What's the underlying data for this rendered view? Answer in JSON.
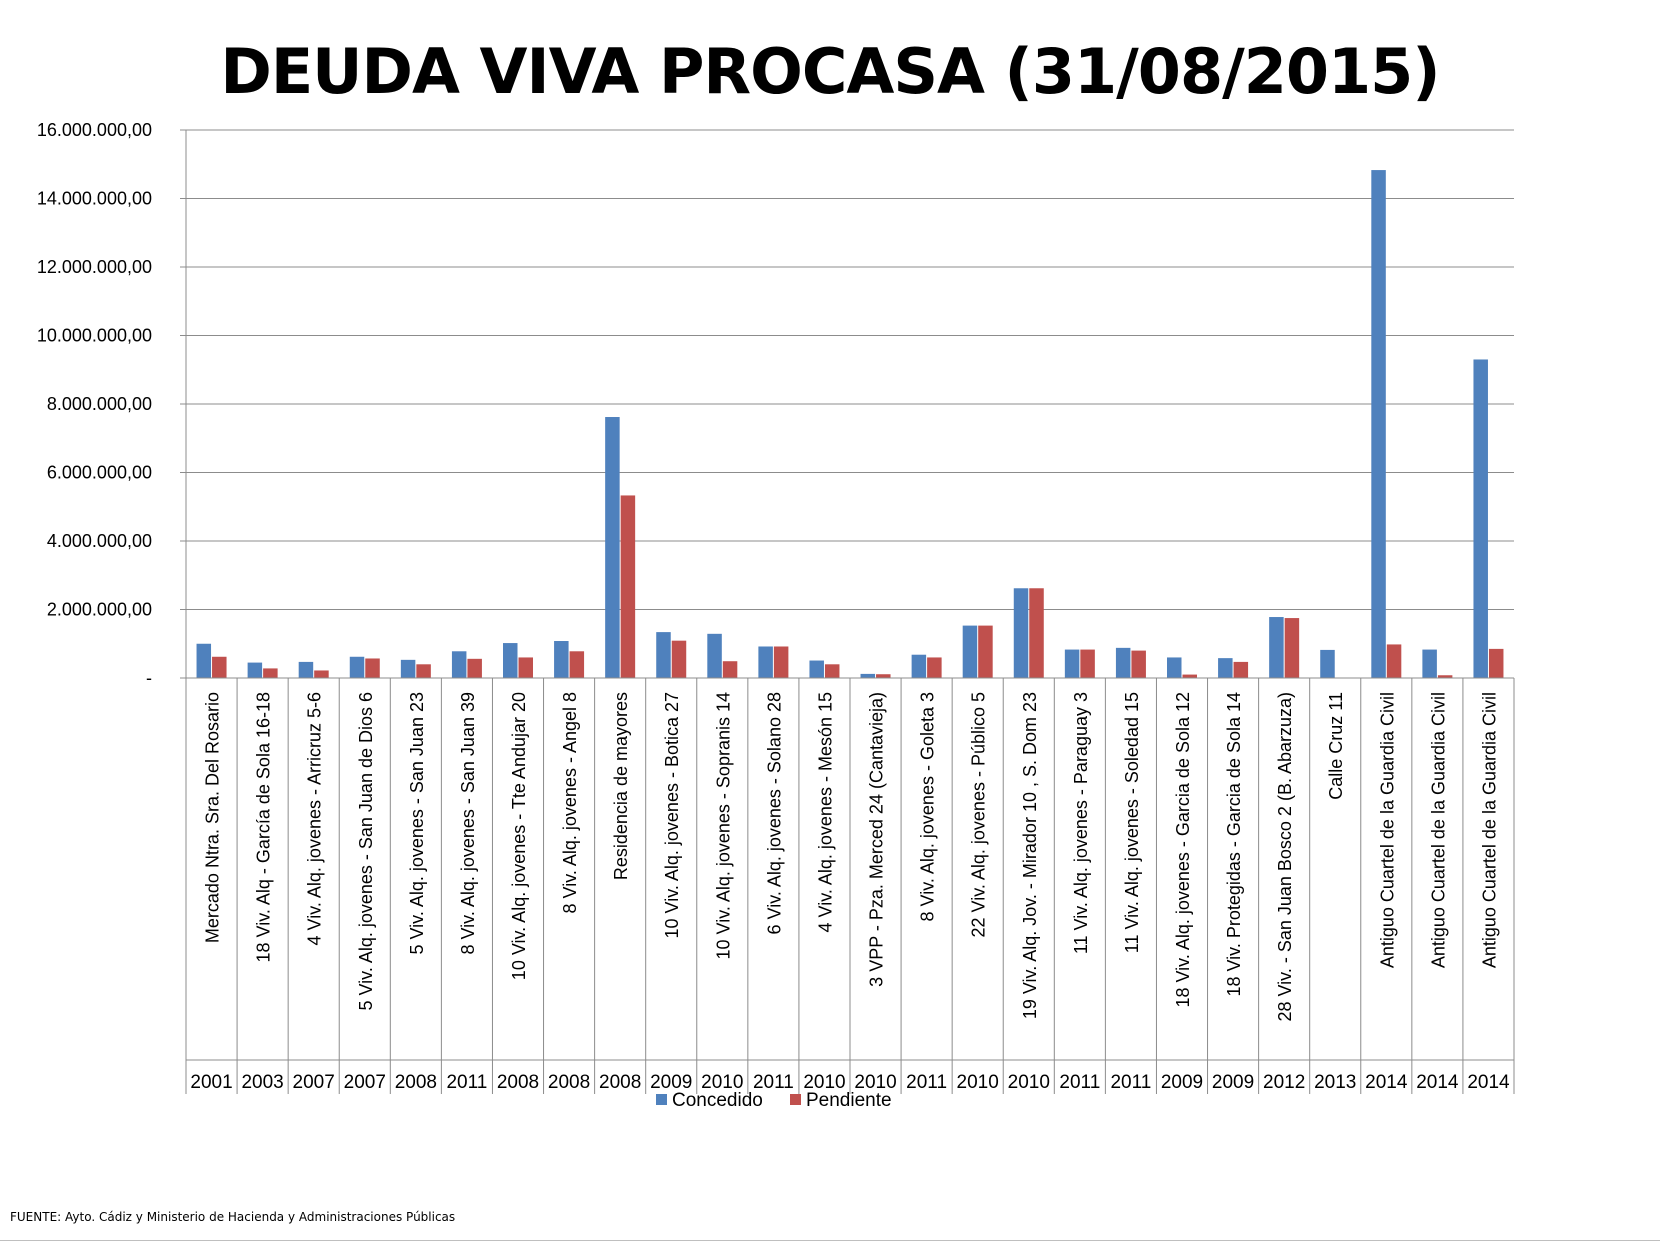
{
  "chart_data": {
    "type": "bar",
    "title": "DEUDA VIVA PROCASA (31/08/2015)",
    "xlabel": "",
    "ylabel": "",
    "ylim": [
      0,
      16000000
    ],
    "y_ticks": [
      "-",
      "2.000.000,00",
      "4.000.000,00",
      "6.000.000,00",
      "8.000.000,00",
      "10.000.000,00",
      "12.000.000,00",
      "14.000.000,00",
      "16.000.000,00"
    ],
    "y_tick_values": [
      0,
      2000000,
      4000000,
      6000000,
      8000000,
      10000000,
      12000000,
      14000000,
      16000000
    ],
    "grid": true,
    "legend": "bottom",
    "categories": [
      "Mercado Ntra. Sra. Del Rosario",
      "18 Viv. Alq - García de Sola 16-18",
      "4 Viv. Alq. jovenes - Arricruz 5-6",
      "5 Viv. Alq. jovenes - San Juan de Dios 6",
      "5 Viv. Alq. jovenes - San Juan 23",
      "8 Viv. Alq. jovenes - San Juan 39",
      "10 Viv. Alq. jovenes - Tte Andujar 20",
      "8 Viv. Alq. jovenes - Angel 8",
      "Residencia de mayores",
      "10 Viv. Alq. jovenes - Botica 27",
      "10 Viv. Alq. jovenes - Sopranis 14",
      "6 Viv. Alq. jovenes - Solano 28",
      "4 Viv. Alq. jovenes - Mesón 15",
      "3 VPP - Pza. Merced 24 (Cantavieja)",
      "8 Viv. Alq. jovenes - Goleta 3",
      "22 Viv. Alq. jovenes - Público 5",
      "19 Viv. Alq. Jov. - Mirador 10 , S. Dom 23",
      "11 Viv. Alq. jovenes - Paraguay 3",
      "11 Viv. Alq. jovenes - Soledad 15",
      "18 Viv. Alq. jovenes - Garcia de Sola 12",
      "18 Viv. Protegidas - Garcia de Sola 14",
      "28 Viv. - San Juan Bosco 2 (B. Abarzuza)",
      "Calle Cruz 11",
      "Antiguo Cuartel de la Guardia Civil",
      "Antiguo Cuartel de la Guardia Civil",
      "Antiguo Cuartel de la Guardia Civil"
    ],
    "years": [
      "2001",
      "2003",
      "2007",
      "2007",
      "2008",
      "2011",
      "2008",
      "2008",
      "2008",
      "2009",
      "2010",
      "2011",
      "2010",
      "2010",
      "2011",
      "2010",
      "2010",
      "2011",
      "2011",
      "2009",
      "2009",
      "2012",
      "2013",
      "2014",
      "2014",
      "2014"
    ],
    "series": [
      {
        "name": "Concedido",
        "color": "#4f81bd",
        "values": [
          1000000,
          450000,
          470000,
          620000,
          530000,
          780000,
          1020000,
          1080000,
          7620000,
          1340000,
          1290000,
          920000,
          510000,
          120000,
          680000,
          1530000,
          2620000,
          830000,
          880000,
          600000,
          580000,
          1780000,
          820000,
          14830000,
          830000,
          9300000
        ]
      },
      {
        "name": "Pendiente",
        "color": "#c0504d",
        "values": [
          620000,
          280000,
          220000,
          570000,
          400000,
          560000,
          600000,
          780000,
          5330000,
          1090000,
          490000,
          920000,
          400000,
          110000,
          600000,
          1530000,
          2620000,
          830000,
          800000,
          100000,
          470000,
          1750000,
          0,
          980000,
          80000,
          850000
        ]
      }
    ]
  },
  "source_note": "FUENTE: Ayto. Cádiz y Ministerio de Hacienda y Administraciones Públicas"
}
